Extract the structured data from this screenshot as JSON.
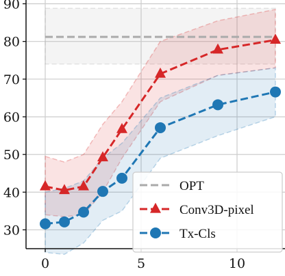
{
  "chart_data": {
    "type": "line",
    "title": "",
    "xlabel": "",
    "ylabel": "",
    "xlim": [
      -1,
      12.5
    ],
    "ylim": [
      25,
      91
    ],
    "xticks": [
      0,
      5,
      10
    ],
    "yticks": [
      30,
      40,
      50,
      60,
      70,
      80,
      90
    ],
    "grid": true,
    "legend_position": "bottom-right",
    "series": [
      {
        "name": "OPT",
        "style": "dashed",
        "color": "#aaaaaa",
        "marker": "none",
        "x": [
          0,
          12
        ],
        "y": [
          81.2,
          81.2
        ],
        "band_upper": [
          88.8,
          88.8
        ],
        "band_lower": [
          74.0,
          74.0
        ]
      },
      {
        "name": "Conv3D-pixel",
        "style": "dashed",
        "color": "#d62728",
        "marker": "triangle",
        "x": [
          0,
          1,
          2,
          3,
          4,
          6,
          9,
          12
        ],
        "y": [
          41.5,
          40.5,
          41.5,
          49.2,
          56.7,
          71.4,
          77.8,
          80.4
        ],
        "band_upper": [
          49.5,
          48.0,
          50.0,
          58.0,
          64.0,
          80.0,
          85.5,
          88.5
        ],
        "band_lower": [
          34.0,
          33.5,
          34.0,
          40.0,
          49.0,
          64.0,
          71.0,
          73.0
        ]
      },
      {
        "name": "Tx-Cls",
        "style": "dashed",
        "color": "#1f77b4",
        "marker": "circle",
        "x": [
          0,
          1,
          2,
          3,
          4,
          6,
          9,
          12
        ],
        "y": [
          31.6,
          32.1,
          34.7,
          40.2,
          43.7,
          57.1,
          63.2,
          66.6
        ],
        "band_upper": [
          40.0,
          41.0,
          43.0,
          49.0,
          53.0,
          65.0,
          71.0,
          73.0
        ],
        "band_lower": [
          24.0,
          23.5,
          26.5,
          32.5,
          35.0,
          49.0,
          55.0,
          60.0
        ]
      }
    ]
  }
}
